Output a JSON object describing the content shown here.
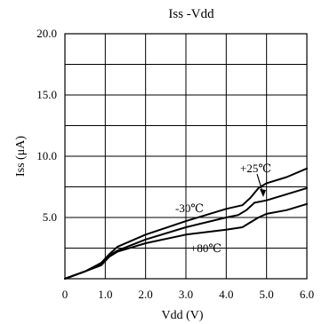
{
  "chart_data": {
    "type": "line",
    "title": "Iss -Vdd",
    "xlabel": "Vdd (V)",
    "ylabel": "Iss (μA)",
    "xlim": [
      0,
      6.0
    ],
    "ylim": [
      0,
      20.0
    ],
    "x_ticks": [
      "0",
      "1.0",
      "2.0",
      "3.0",
      "4.0",
      "5.0",
      "6.0"
    ],
    "y_ticks": [
      "5.0",
      "10.0",
      "15.0",
      "20.0"
    ],
    "grid": true,
    "series": [
      {
        "name": "-30℃",
        "x": [
          0,
          0.5,
          0.9,
          1.1,
          1.3,
          2.0,
          3.0,
          4.0,
          4.4,
          4.6,
          4.8,
          5.0,
          5.5,
          6.0
        ],
        "y": [
          0,
          0.6,
          1.3,
          2.0,
          2.6,
          3.6,
          4.7,
          5.7,
          6.0,
          6.6,
          7.4,
          7.8,
          8.3,
          9.0
        ]
      },
      {
        "name": "+25℃",
        "x": [
          0,
          0.5,
          0.9,
          1.1,
          1.3,
          2.0,
          3.0,
          4.0,
          4.3,
          4.5,
          4.7,
          5.0,
          5.5,
          6.0
        ],
        "y": [
          0,
          0.6,
          1.2,
          1.9,
          2.3,
          3.2,
          4.2,
          5.0,
          5.2,
          5.6,
          6.2,
          6.4,
          6.9,
          7.4
        ]
      },
      {
        "name": "+80℃",
        "x": [
          0,
          0.5,
          0.9,
          1.1,
          1.3,
          2.0,
          3.0,
          4.0,
          4.4,
          4.6,
          4.8,
          5.0,
          5.5,
          6.0
        ],
        "y": [
          0,
          0.6,
          1.1,
          1.8,
          2.2,
          2.9,
          3.6,
          4.0,
          4.2,
          4.6,
          5.0,
          5.3,
          5.6,
          6.1
        ]
      }
    ],
    "annotations": {
      "cold": "-30℃",
      "room": "+25℃",
      "hot": "+80℃"
    }
  }
}
